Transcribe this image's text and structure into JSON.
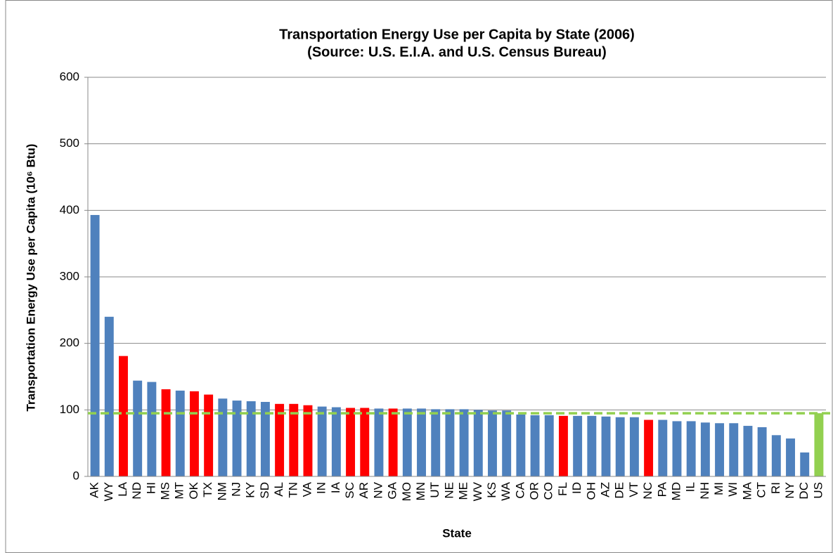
{
  "chart_data": {
    "type": "bar",
    "title": [
      "Transportation Energy Use per Capita by State (2006)",
      "(Source: U.S. E.I.A. and U.S. Census Bureau)"
    ],
    "xlabel": "State",
    "ylabel": "Transportation Energy Use per Capita (10⁶ Btu)",
    "categories": [
      "AK",
      "WY",
      "LA",
      "ND",
      "HI",
      "MS",
      "MT",
      "OK",
      "TX",
      "NM",
      "NJ",
      "KY",
      "SD",
      "AL",
      "TN",
      "VA",
      "IN",
      "IA",
      "SC",
      "AR",
      "NV",
      "GA",
      "MO",
      "MN",
      "UT",
      "NE",
      "ME",
      "WV",
      "KS",
      "WA",
      "CA",
      "OR",
      "CO",
      "FL",
      "ID",
      "OH",
      "AZ",
      "DE",
      "VT",
      "NC",
      "PA",
      "MD",
      "IL",
      "NH",
      "MI",
      "WI",
      "MA",
      "CT",
      "RI",
      "NY",
      "DC",
      "US"
    ],
    "values": [
      393,
      240,
      181,
      144,
      142,
      131,
      129,
      128,
      123,
      117,
      114,
      113,
      112,
      109,
      109,
      107,
      105,
      104,
      103,
      103,
      102,
      102,
      102,
      102,
      101,
      101,
      101,
      100,
      99,
      99,
      93,
      92,
      92,
      91,
      91,
      91,
      90,
      89,
      89,
      85,
      85,
      83,
      83,
      81,
      80,
      80,
      76,
      74,
      62,
      57,
      36,
      95
    ],
    "colors": [
      "#4f81bd",
      "#4f81bd",
      "#ff0000",
      "#4f81bd",
      "#4f81bd",
      "#ff0000",
      "#4f81bd",
      "#ff0000",
      "#ff0000",
      "#4f81bd",
      "#4f81bd",
      "#4f81bd",
      "#4f81bd",
      "#ff0000",
      "#ff0000",
      "#ff0000",
      "#4f81bd",
      "#4f81bd",
      "#ff0000",
      "#ff0000",
      "#4f81bd",
      "#ff0000",
      "#4f81bd",
      "#4f81bd",
      "#4f81bd",
      "#4f81bd",
      "#4f81bd",
      "#4f81bd",
      "#4f81bd",
      "#4f81bd",
      "#4f81bd",
      "#4f81bd",
      "#4f81bd",
      "#ff0000",
      "#4f81bd",
      "#4f81bd",
      "#4f81bd",
      "#4f81bd",
      "#4f81bd",
      "#ff0000",
      "#4f81bd",
      "#4f81bd",
      "#4f81bd",
      "#4f81bd",
      "#4f81bd",
      "#4f81bd",
      "#4f81bd",
      "#4f81bd",
      "#4f81bd",
      "#4f81bd",
      "#4f81bd",
      "#92d050"
    ],
    "reference_color": "#92d050",
    "ylim": [
      0,
      600
    ],
    "yticks": [
      0,
      100,
      200,
      300,
      400,
      500,
      600
    ],
    "grid": true
  }
}
